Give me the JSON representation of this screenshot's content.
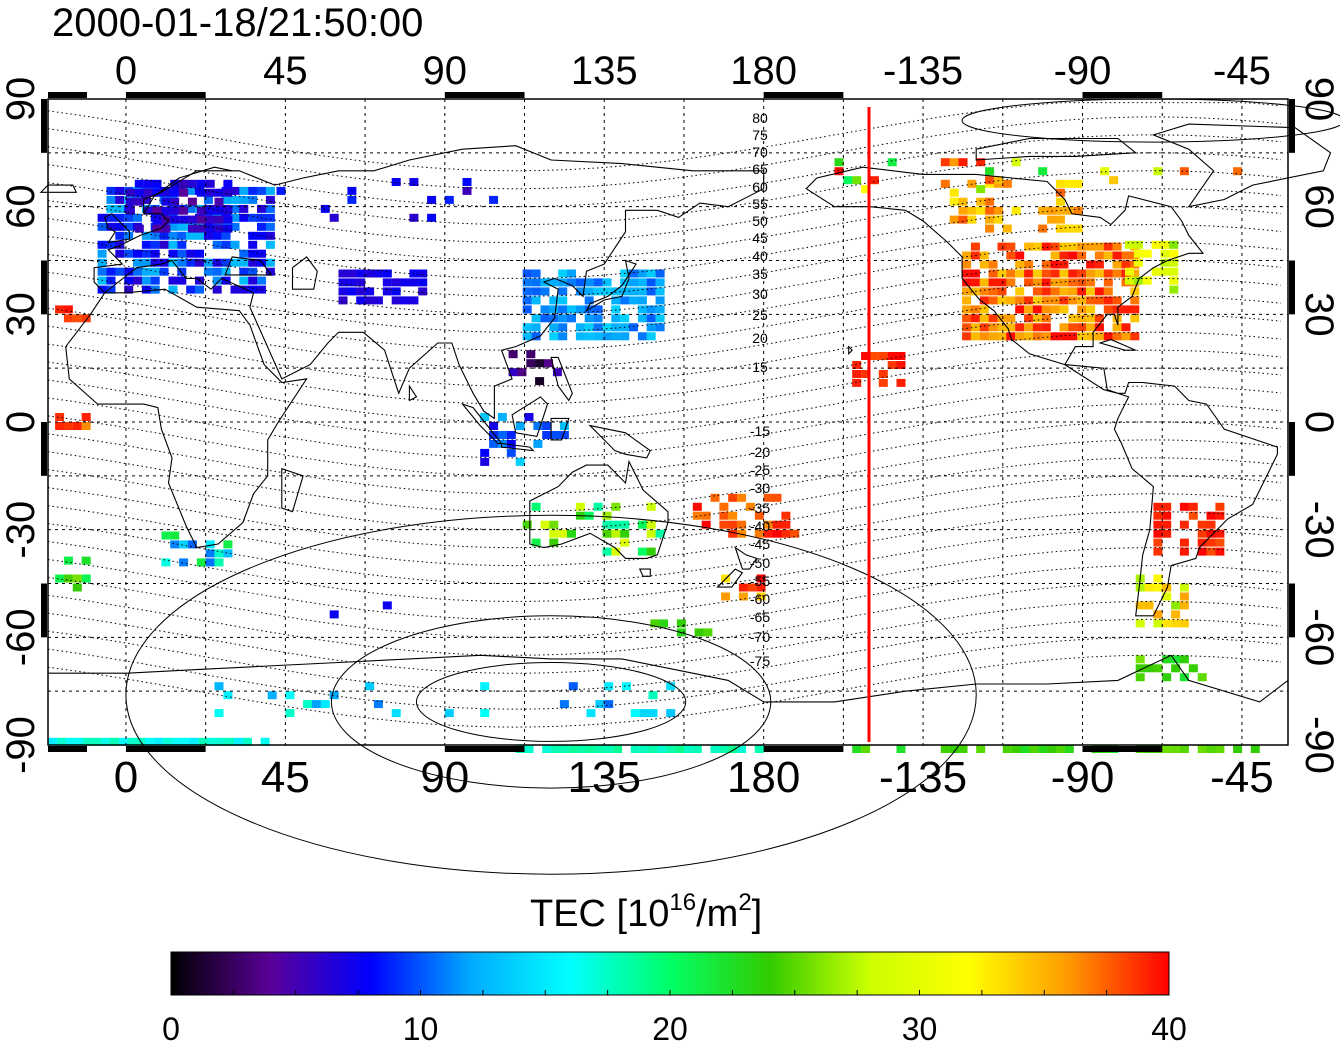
{
  "title": "2000-01-18/21:50:00",
  "colorbar": {
    "label_main": "TEC  [10",
    "label_sup1": "16",
    "label_mid": "/m",
    "label_sup2": "2",
    "label_end": "]",
    "min": 0,
    "max": 40,
    "ticks": [
      "0",
      "10",
      "20",
      "30",
      "40"
    ],
    "colors": [
      "#000000",
      "#5a0099",
      "#0000ff",
      "#00aaff",
      "#00ffff",
      "#00ff66",
      "#33cc00",
      "#ccff00",
      "#ffff00",
      "#ff9900",
      "#ff0000"
    ]
  },
  "map": {
    "lon_ticks_top": [
      "0",
      "45",
      "90",
      "135",
      "180",
      "-135",
      "-90",
      "-45"
    ],
    "lon_ticks_bottom": [
      "0",
      "45",
      "90",
      "135",
      "180",
      "-135",
      "-90",
      "-45"
    ],
    "lat_ticks_left": [
      "90",
      "60",
      "30",
      "0",
      "-30",
      "-60",
      "-90"
    ],
    "lat_ticks_right": [
      "90",
      "60",
      "30",
      "0",
      "-30",
      "-60",
      "-90"
    ],
    "magnetic_lat_labels": [
      "80",
      "75",
      "70",
      "65",
      "60",
      "55",
      "50",
      "45",
      "40",
      "35",
      "30",
      "25",
      "20",
      "15",
      "-15",
      "-20",
      "-25",
      "-30",
      "-35",
      "-40",
      "-45",
      "-50",
      "-55",
      "-60",
      "-65",
      "-70",
      "-75"
    ],
    "terminator_color": "#ff0000",
    "coastline_color": "#000000"
  },
  "chart_data": {
    "type": "heatmap",
    "title": "2000-01-18/21:50:00",
    "xlabel": "",
    "ylabel": "",
    "x_range": [
      -22,
      328
    ],
    "y_range": [
      -90,
      90
    ],
    "value_range": [
      0,
      40
    ],
    "value_label": "TEC [10^16/m^2]",
    "grid": true,
    "regions": [
      {
        "lon": [
          0,
          40
        ],
        "lat": [
          40,
          70
        ],
        "tec": 9
      },
      {
        "lon": [
          110,
          150
        ],
        "lat": [
          25,
          45
        ],
        "tec": 12
      },
      {
        "lon": [
          235,
          280
        ],
        "lat": [
          25,
          60
        ],
        "tec": 37
      },
      {
        "lon": [
          285,
          305
        ],
        "lat": [
          -50,
          -20
        ],
        "tec": 39
      },
      {
        "lon": [
          160,
          190
        ],
        "lat": [
          -50,
          -20
        ],
        "tec": 38
      }
    ]
  }
}
